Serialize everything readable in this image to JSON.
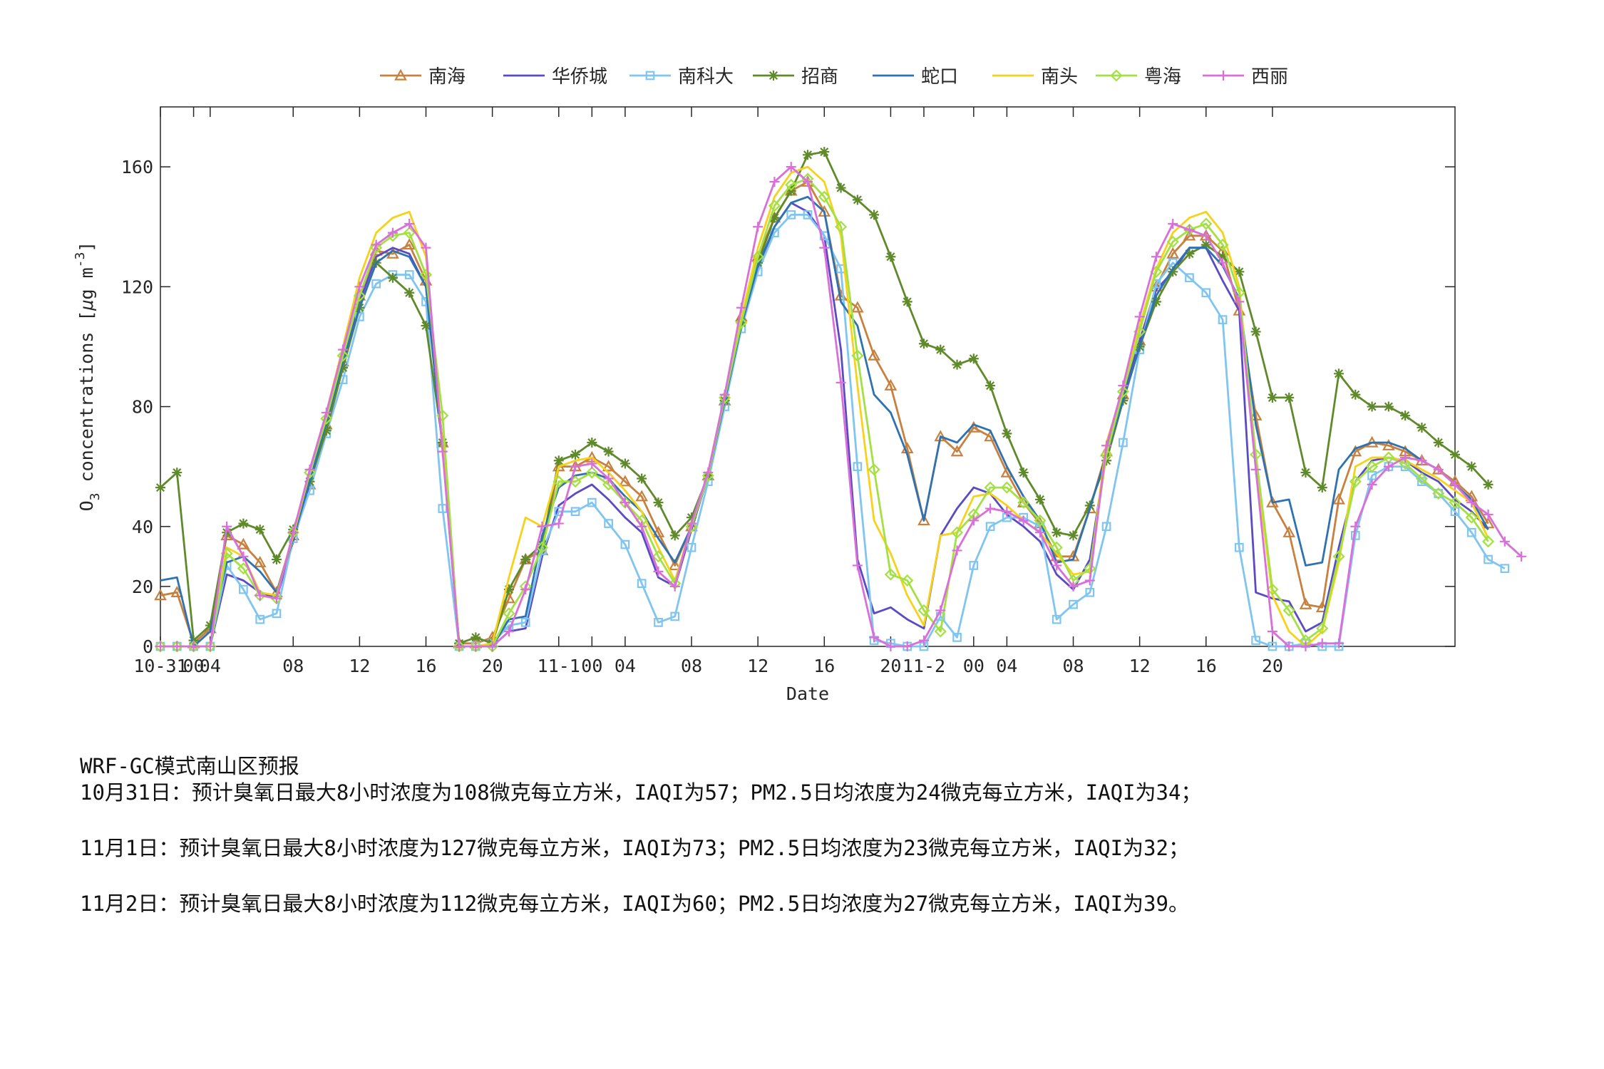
{
  "chart_data": {
    "type": "line",
    "xlabel": "Date",
    "ylabel": "O3 concentrations [μg m-3]",
    "ylabel_parts": {
      "o": "O",
      "sub": "3",
      "mid": " concentrations [",
      "mu": "μ",
      "unit": "g m",
      "sup": "-3",
      "end": "]"
    },
    "ylim": [
      0,
      180
    ],
    "yticks": [
      0,
      20,
      40,
      80,
      120,
      160
    ],
    "x_range": [
      0,
      78
    ],
    "xticks": [
      {
        "x": 0,
        "label": "10-31"
      },
      {
        "x": 2,
        "label": "00"
      },
      {
        "x": 3,
        "label": "04"
      },
      {
        "x": 8,
        "label": "08"
      },
      {
        "x": 12,
        "label": "12"
      },
      {
        "x": 16,
        "label": "16"
      },
      {
        "x": 20,
        "label": "20"
      },
      {
        "x": 24,
        "label": "11-1"
      },
      {
        "x": 26,
        "label": "00"
      },
      {
        "x": 28,
        "label": "04"
      },
      {
        "x": 32,
        "label": "08"
      },
      {
        "x": 36,
        "label": "12"
      },
      {
        "x": 40,
        "label": "16"
      },
      {
        "x": 44,
        "label": "20"
      },
      {
        "x": 46,
        "label": "11-2"
      },
      {
        "x": 49,
        "label": "00"
      },
      {
        "x": 51,
        "label": "04"
      },
      {
        "x": 55,
        "label": "08"
      },
      {
        "x": 59,
        "label": "12"
      },
      {
        "x": 63,
        "label": "16"
      },
      {
        "x": 67,
        "label": "20"
      }
    ],
    "legend_position": "top-outside",
    "grid": false,
    "series": [
      {
        "name": "南海",
        "color": "#c8803e",
        "marker": "triangle",
        "values": [
          17,
          18,
          1,
          6,
          37,
          34,
          28,
          18,
          37,
          54,
          74,
          95,
          117,
          132,
          131,
          134,
          122,
          68,
          1,
          1,
          3,
          16,
          29,
          32,
          60,
          60,
          63,
          60,
          55,
          50,
          38,
          27,
          40,
          57,
          82,
          110,
          130,
          143,
          152,
          155,
          145,
          117,
          113,
          97,
          87,
          66,
          42,
          70,
          65,
          73,
          70,
          58,
          48,
          41,
          30,
          30,
          46,
          65,
          84,
          102,
          120,
          131,
          137,
          137,
          132,
          112,
          77,
          48,
          38,
          14,
          13,
          49,
          65,
          68,
          67,
          65,
          62,
          59,
          55,
          50,
          41
        ]
      },
      {
        "name": "华侨城",
        "color": "#5a4bc4",
        "marker": "none",
        "values": [
          0,
          0,
          0,
          0,
          24,
          22,
          18,
          16,
          35,
          54,
          74,
          95,
          115,
          130,
          133,
          131,
          120,
          68,
          0,
          0,
          0,
          5,
          6,
          30,
          47,
          51,
          54,
          49,
          43,
          38,
          23,
          20,
          39,
          57,
          82,
          106,
          126,
          140,
          148,
          145,
          137,
          99,
          29,
          11,
          13,
          9,
          6,
          37,
          46,
          53,
          51,
          44,
          40,
          35,
          24,
          19,
          29,
          65,
          83,
          102,
          119,
          125,
          133,
          133,
          122,
          112,
          18,
          16,
          15,
          5,
          8,
          33,
          55,
          62,
          63,
          62,
          58,
          55,
          49,
          45,
          39
        ]
      },
      {
        "name": "南科大",
        "color": "#7fc5f0",
        "marker": "square",
        "values": [
          0,
          0,
          0,
          0,
          27,
          19,
          9,
          11,
          36,
          52,
          71,
          89,
          110,
          121,
          124,
          124,
          115,
          46,
          0,
          0,
          1,
          7,
          8,
          32,
          45,
          45,
          48,
          41,
          34,
          21,
          8,
          10,
          33,
          55,
          80,
          106,
          125,
          138,
          144,
          144,
          137,
          126,
          60,
          2,
          1,
          0,
          0,
          10,
          3,
          27,
          40,
          43,
          43,
          40,
          9,
          14,
          18,
          40,
          68,
          99,
          121,
          128,
          123,
          118,
          109,
          33,
          2,
          0,
          0,
          1,
          0,
          0,
          37,
          57,
          60,
          60,
          55,
          51,
          45,
          38,
          29,
          26
        ]
      },
      {
        "name": "招商",
        "color": "#5f8a2a",
        "marker": "asterisk",
        "values": [
          53,
          58,
          2,
          7,
          38,
          41,
          39,
          29,
          39,
          55,
          72,
          93,
          113,
          128,
          123,
          118,
          107,
          68,
          1,
          3,
          1,
          19,
          29,
          34,
          62,
          64,
          68,
          65,
          61,
          56,
          48,
          37,
          43,
          57,
          82,
          108,
          128,
          143,
          152,
          164,
          165,
          153,
          149,
          144,
          130,
          115,
          101,
          99,
          94,
          96,
          87,
          71,
          58,
          49,
          38,
          37,
          47,
          62,
          82,
          100,
          115,
          125,
          131,
          134,
          130,
          125,
          105,
          83,
          83,
          58,
          53,
          91,
          84,
          80,
          80,
          77,
          73,
          68,
          64,
          60,
          54
        ]
      },
      {
        "name": "蛇口",
        "color": "#2f72b0",
        "marker": "none",
        "values": [
          22,
          23,
          0,
          5,
          28,
          30,
          25,
          18,
          36,
          55,
          75,
          95,
          113,
          128,
          132,
          130,
          120,
          66,
          0,
          0,
          0,
          9,
          10,
          37,
          53,
          57,
          58,
          56,
          50,
          45,
          36,
          28,
          40,
          57,
          82,
          107,
          127,
          140,
          148,
          150,
          145,
          115,
          107,
          84,
          78,
          64,
          42,
          70,
          68,
          74,
          72,
          60,
          50,
          42,
          28,
          29,
          46,
          64,
          82,
          100,
          117,
          126,
          133,
          133,
          127,
          116,
          74,
          48,
          49,
          27,
          28,
          59,
          66,
          68,
          68,
          66,
          62,
          59,
          54,
          49,
          39
        ]
      },
      {
        "name": "南头",
        "color": "#f7d21a",
        "marker": "none",
        "values": [
          0,
          0,
          0,
          0,
          33,
          30,
          18,
          17,
          37,
          58,
          78,
          100,
          123,
          138,
          143,
          145,
          130,
          67,
          0,
          0,
          1,
          23,
          43,
          40,
          60,
          62,
          63,
          58,
          52,
          45,
          33,
          22,
          40,
          58,
          84,
          110,
          133,
          150,
          158,
          160,
          155,
          137,
          87,
          42,
          31,
          17,
          7,
          37,
          38,
          50,
          51,
          47,
          42,
          38,
          31,
          24,
          25,
          68,
          86,
          107,
          126,
          138,
          143,
          145,
          138,
          120,
          61,
          17,
          5,
          0,
          5,
          28,
          60,
          63,
          63,
          62,
          59,
          56,
          52,
          48,
          36
        ]
      },
      {
        "name": "粤海",
        "color": "#a3e043",
        "marker": "diamond",
        "values": [
          0,
          0,
          0,
          0,
          31,
          26,
          17,
          16,
          38,
          58,
          76,
          97,
          117,
          133,
          137,
          138,
          124,
          77,
          0,
          0,
          0,
          11,
          20,
          33,
          55,
          55,
          58,
          54,
          48,
          42,
          30,
          21,
          40,
          57,
          83,
          108,
          130,
          147,
          154,
          156,
          150,
          140,
          97,
          59,
          24,
          22,
          12,
          5,
          38,
          44,
          53,
          53,
          48,
          42,
          33,
          22,
          26,
          64,
          85,
          105,
          125,
          135,
          139,
          141,
          134,
          118,
          64,
          19,
          12,
          2,
          6,
          30,
          55,
          60,
          63,
          61,
          56,
          51,
          48,
          43,
          35
        ]
      },
      {
        "name": "西丽",
        "color": "#d96fd9",
        "marker": "plus",
        "values": [
          0,
          0,
          0,
          0,
          40,
          30,
          17,
          16,
          38,
          59,
          78,
          99,
          120,
          134,
          138,
          141,
          133,
          65,
          0,
          0,
          0,
          5,
          19,
          40,
          41,
          60,
          61,
          56,
          48,
          40,
          25,
          20,
          41,
          58,
          84,
          113,
          140,
          155,
          160,
          155,
          133,
          88,
          27,
          3,
          0,
          0,
          2,
          12,
          32,
          42,
          46,
          45,
          42,
          38,
          27,
          20,
          22,
          67,
          87,
          110,
          130,
          141,
          139,
          137,
          128,
          115,
          59,
          5,
          0,
          0,
          1,
          1,
          40,
          54,
          60,
          63,
          62,
          59,
          54,
          48,
          44,
          35,
          30
        ]
      }
    ]
  },
  "forecast": {
    "title": "WRF-GC模式南山区预报",
    "lines": [
      "10月31日：预计臭氧日最大8小时浓度为108微克每立方米，IAQI为57；PM2.5日均浓度为24微克每立方米，IAQI为34；",
      "11月1日：预计臭氧日最大8小时浓度为127微克每立方米，IAQI为73；PM2.5日均浓度为23微克每立方米，IAQI为32；",
      "11月2日：预计臭氧日最大8小时浓度为112微克每立方米，IAQI为60；PM2.5日均浓度为27微克每立方米，IAQI为39。"
    ]
  }
}
